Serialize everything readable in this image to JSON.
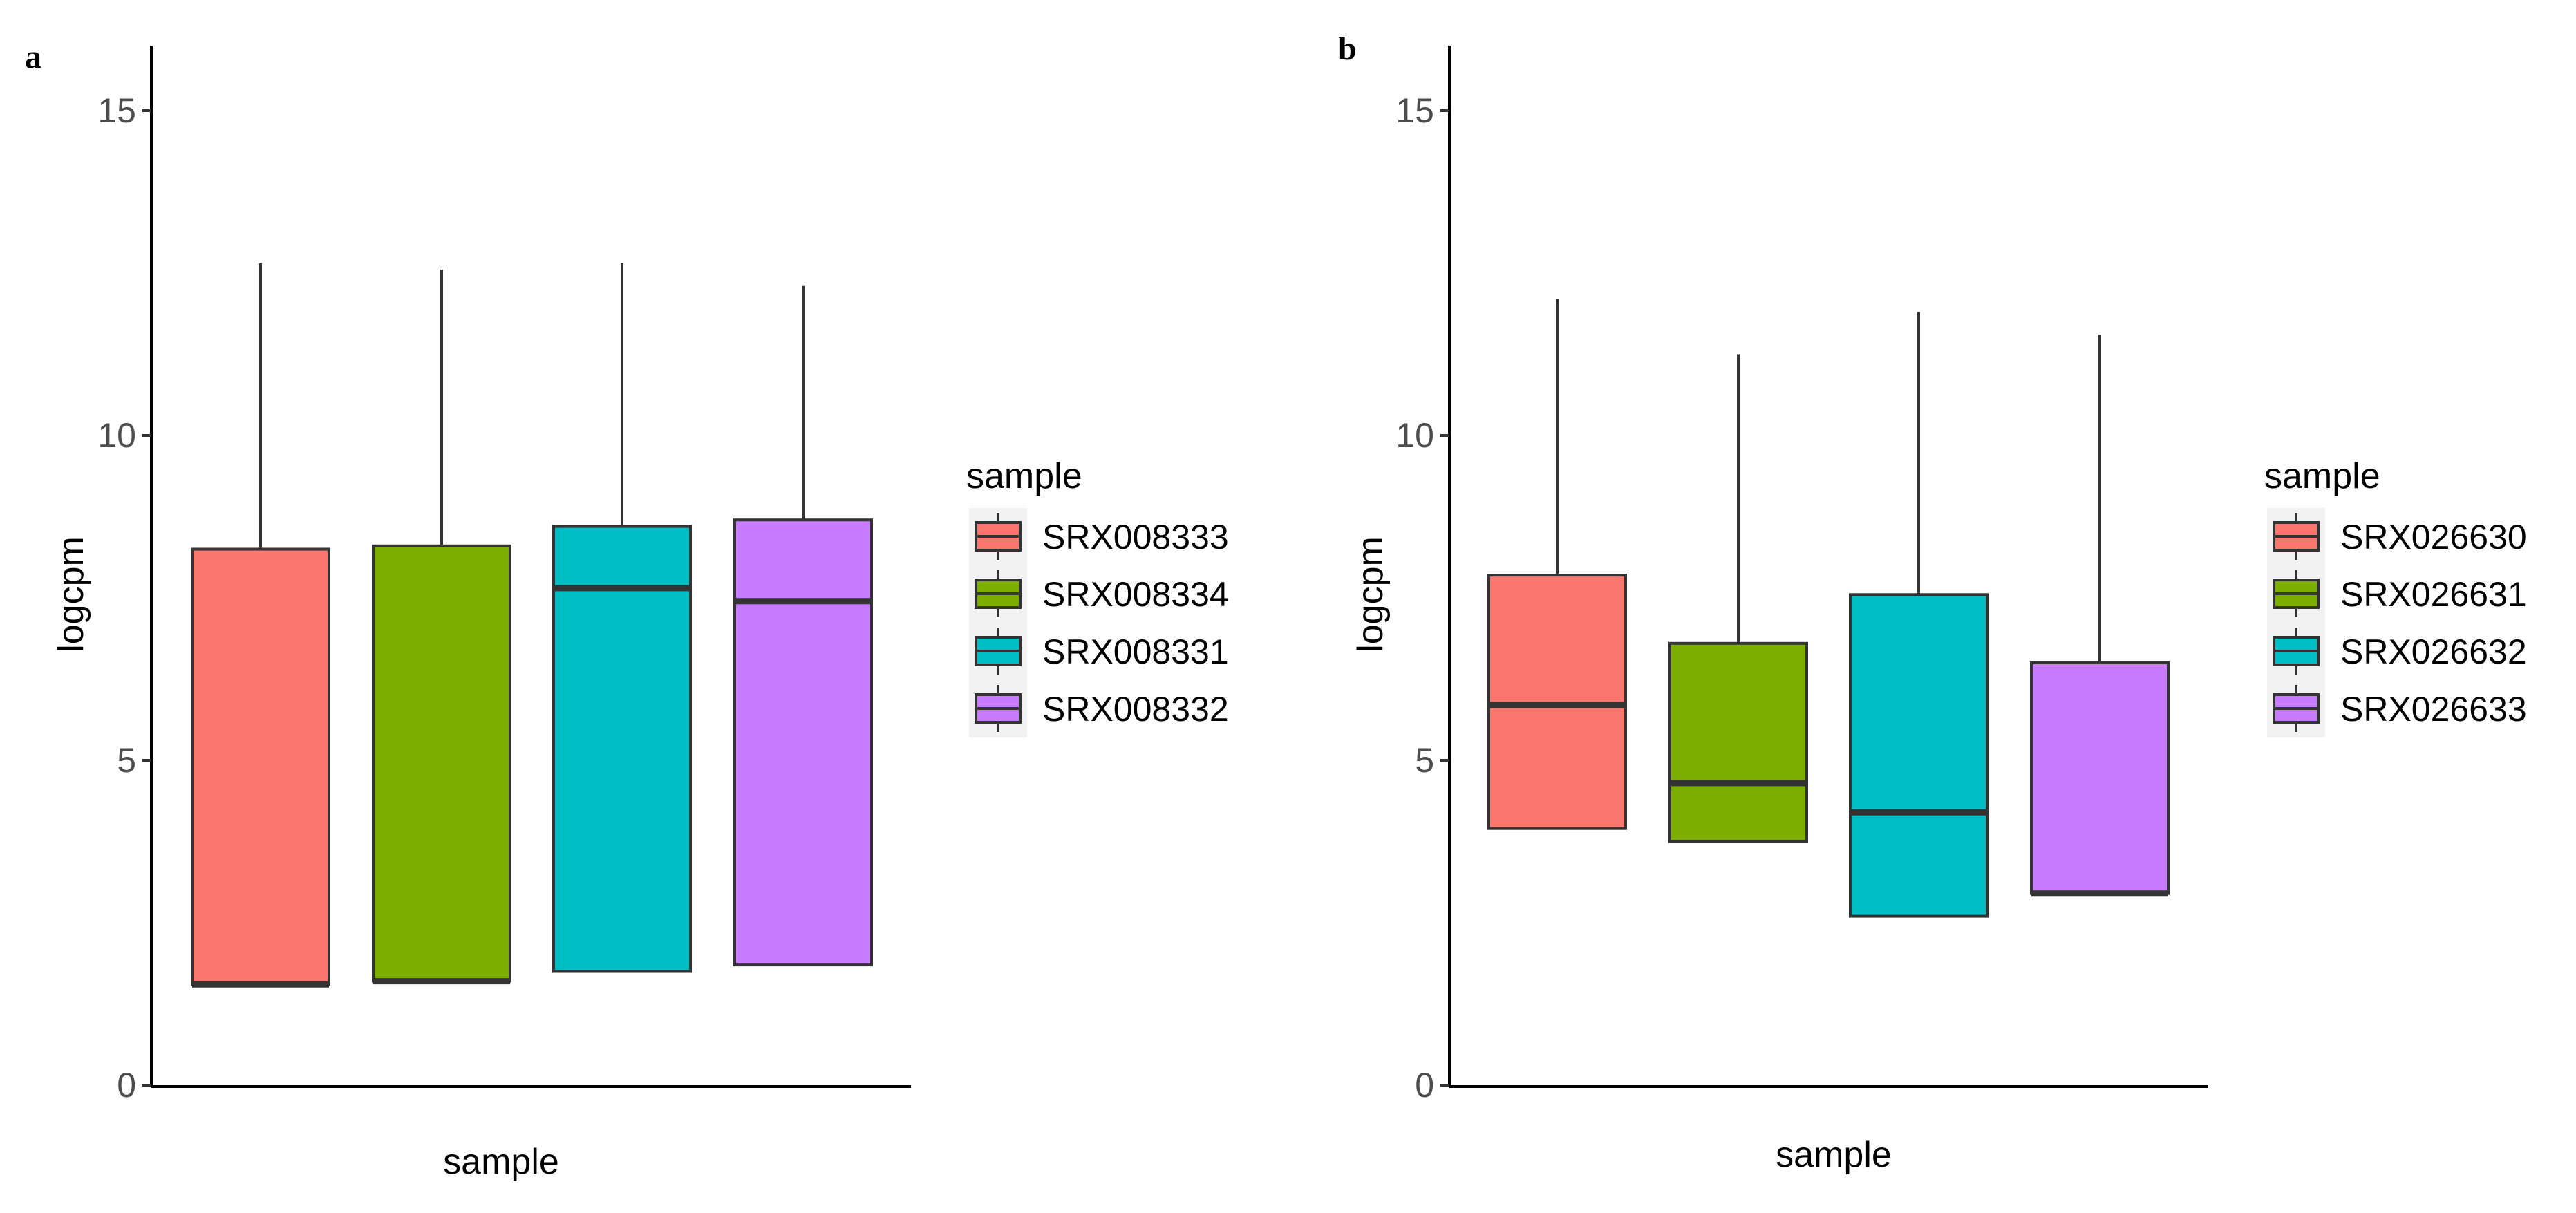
{
  "chart_data": [
    {
      "type": "box",
      "panel": "a",
      "xlabel": "sample",
      "ylabel": "logcpm",
      "ylim": [
        0,
        16
      ],
      "yticks": [
        0,
        5,
        10,
        15
      ],
      "legend_title": "sample",
      "legend_position": "right",
      "series": [
        {
          "name": "SRX008333",
          "color": "#F8766D",
          "whisker_low": 1.55,
          "q1": 1.55,
          "median": 1.55,
          "q3": 8.25,
          "whisker_high": 12.65
        },
        {
          "name": "SRX008334",
          "color": "#7CAE00",
          "whisker_low": 1.6,
          "q1": 1.6,
          "median": 1.6,
          "q3": 8.3,
          "whisker_high": 12.55
        },
        {
          "name": "SRX008331",
          "color": "#00BFC4",
          "whisker_low": 1.75,
          "q1": 1.75,
          "median": 7.65,
          "q3": 8.6,
          "whisker_high": 12.65
        },
        {
          "name": "SRX008332",
          "color": "#C77CFF",
          "whisker_low": 1.85,
          "q1": 1.85,
          "median": 7.45,
          "q3": 8.7,
          "whisker_high": 12.3
        }
      ]
    },
    {
      "type": "box",
      "panel": "b",
      "xlabel": "sample",
      "ylabel": "logcpm",
      "ylim": [
        0,
        16
      ],
      "yticks": [
        0,
        5,
        10,
        15
      ],
      "legend_title": "sample",
      "legend_position": "right",
      "series": [
        {
          "name": "SRX026630",
          "color": "#F8766D",
          "whisker_low": 3.95,
          "q1": 3.95,
          "median": 5.85,
          "q3": 7.85,
          "whisker_high": 12.1
        },
        {
          "name": "SRX026631",
          "color": "#7CAE00",
          "whisker_low": 3.75,
          "q1": 3.75,
          "median": 4.65,
          "q3": 6.8,
          "whisker_high": 11.25
        },
        {
          "name": "SRX026632",
          "color": "#00BFC4",
          "whisker_low": 2.6,
          "q1": 2.6,
          "median": 4.2,
          "q3": 7.55,
          "whisker_high": 11.9
        },
        {
          "name": "SRX026633",
          "color": "#C77CFF",
          "whisker_low": 2.95,
          "q1": 2.95,
          "median": 2.95,
          "q3": 6.5,
          "whisker_high": 11.55
        }
      ]
    }
  ]
}
